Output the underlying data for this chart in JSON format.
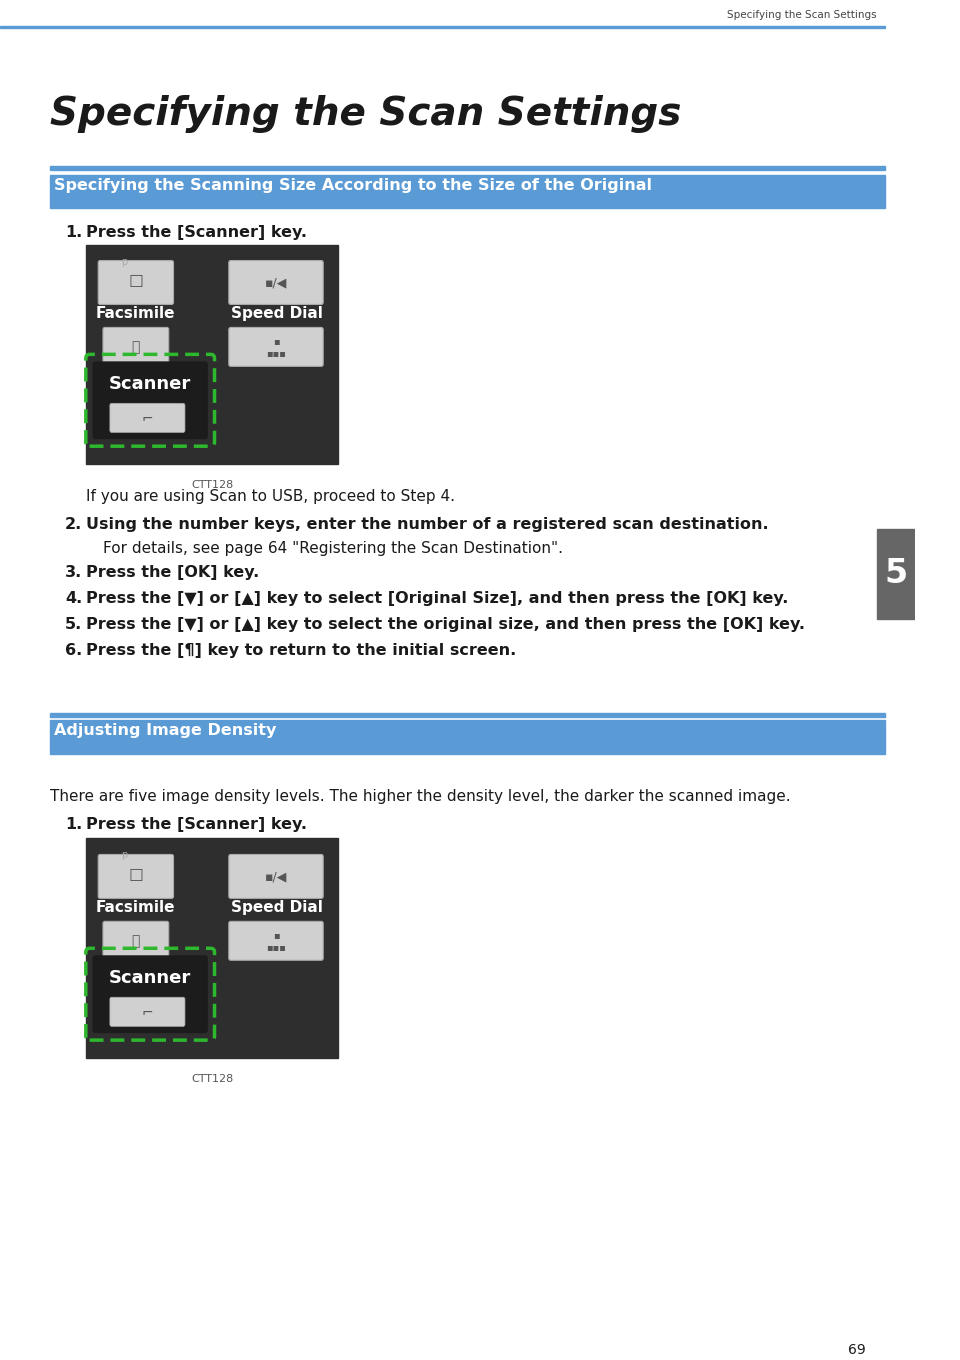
{
  "page_header": "Specifying the Scan Settings",
  "page_number": "69",
  "chapter_tab_text": "5",
  "main_title": "Specifying the Scan Settings",
  "section1_title": "Specifying the Scanning Size According to the Size of the Original",
  "section2_title": "Adjusting Image Density",
  "header_line_color": "#5b9bd5",
  "section_bg_top": "#5b9bd5",
  "section_bg_bot": "#4a86c8",
  "body_bg": "#ffffff",
  "text_color": "#1a1a1a",
  "image_bg": "#2e2e2e",
  "image_caption": "CTT128",
  "step1_text": "Press the [Scanner] key.",
  "note1": "If you are using Scan to USB, proceed to Step 4.",
  "step2_text": "Using the number keys, enter the number of a registered scan destination.",
  "note2": "For details, see page 64 \"Registering the Scan Destination\".",
  "step3_text": "Press the [OK] key.",
  "step4_text": "Press the [▼] or [▲] key to select [Original Size], and then press the [OK] key.",
  "step5_text": "Press the [▼] or [▲] key to select the original size, and then press the [OK] key.",
  "step6_text": "Press the [¶] key to return to the initial screen.",
  "density_desc": "There are five image density levels. The higher the density level, the darker the scanned image.",
  "s2_step1_text": "Press the [Scanner] key.",
  "btn_light_color": "#d0d0d0",
  "btn_dark_color": "#3a3a3a",
  "green_dash_color": "#2db82d",
  "chapter_tab_color": "#666666"
}
